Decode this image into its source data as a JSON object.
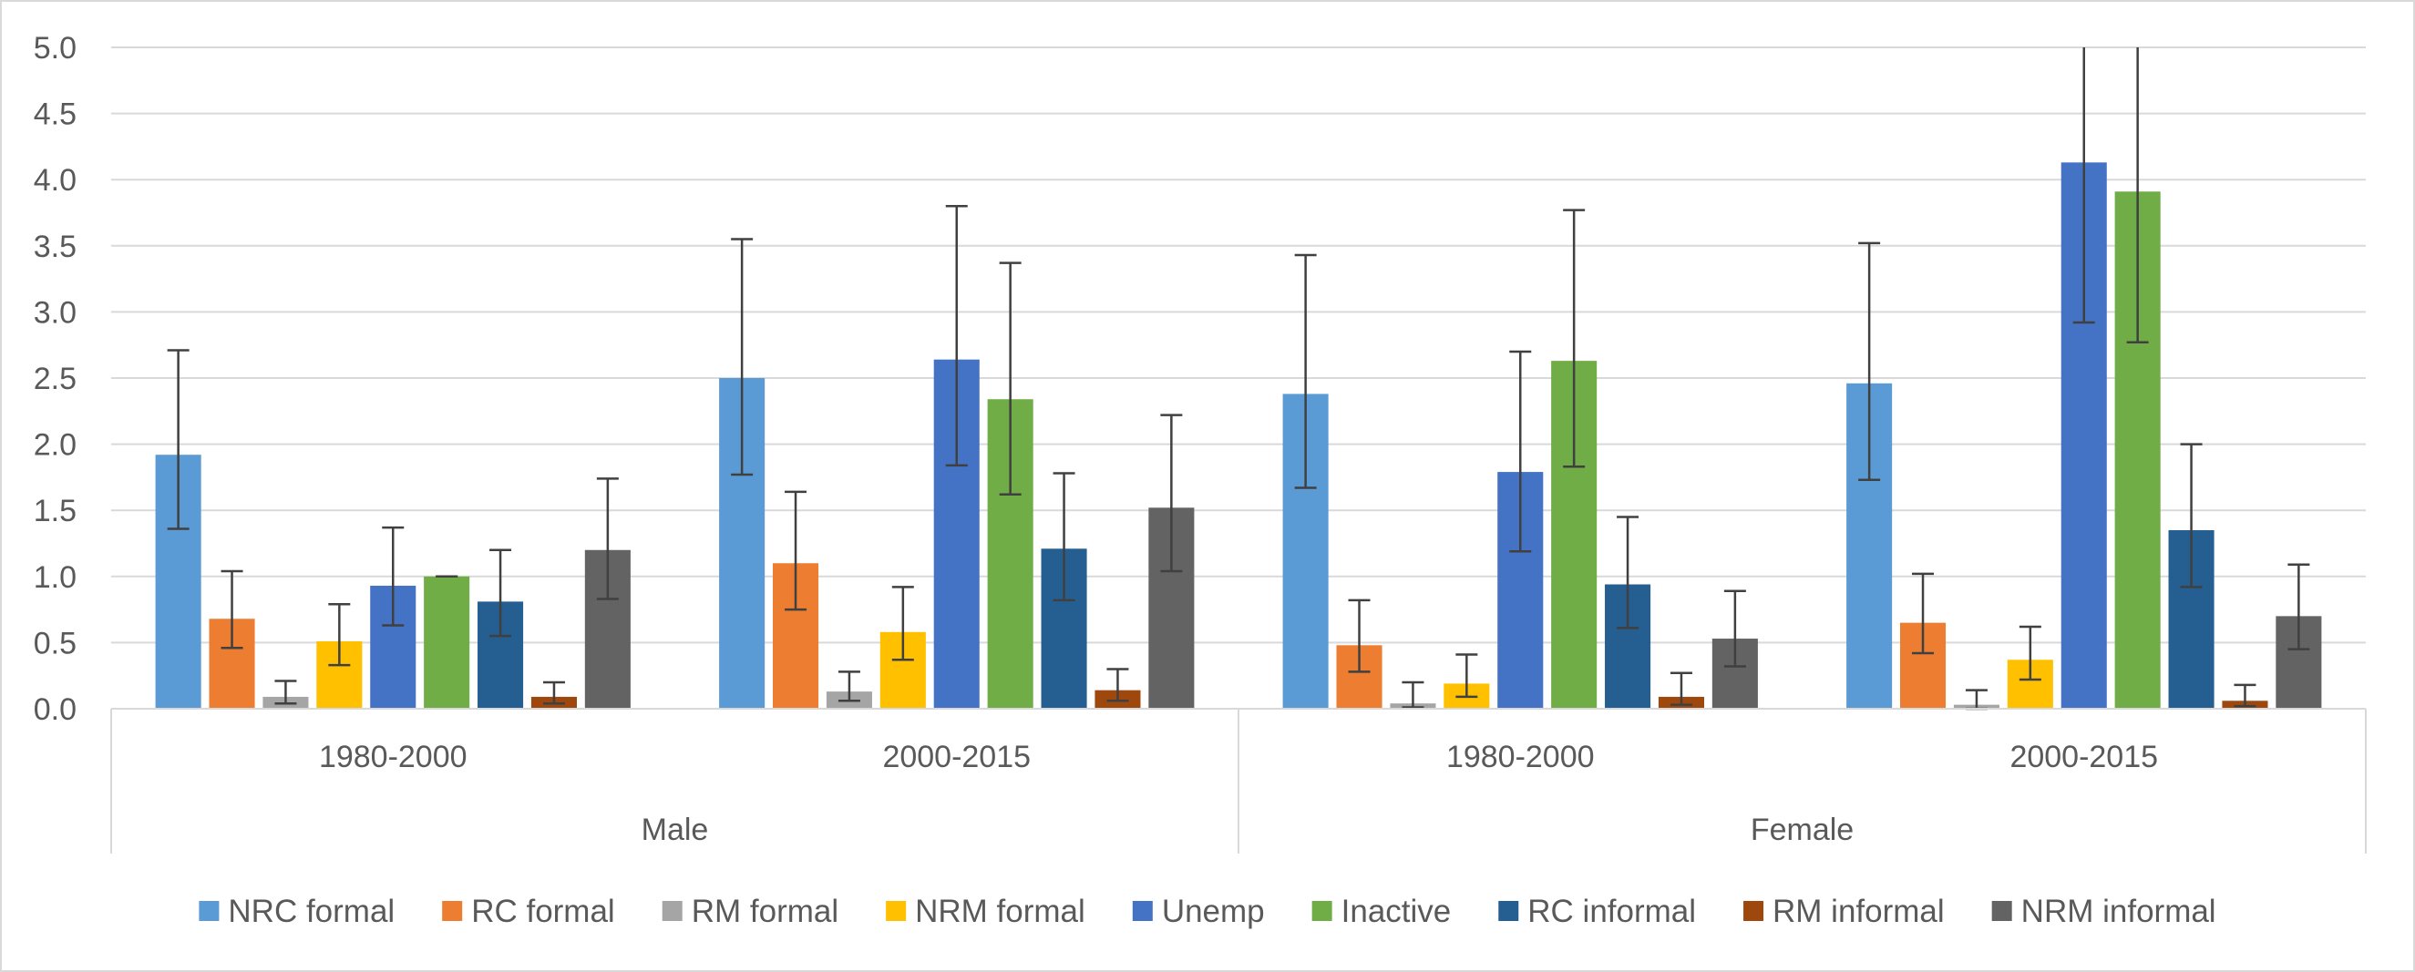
{
  "chart_data": {
    "type": "bar",
    "title": "",
    "xlabel": "",
    "ylabel": "",
    "ylim": [
      0,
      5
    ],
    "yticks": [
      "0.0",
      "0.5",
      "1.0",
      "1.5",
      "2.0",
      "2.5",
      "3.0",
      "3.5",
      "4.0",
      "4.5",
      "5.0"
    ],
    "grid": true,
    "legend_position": "bottom",
    "error_bars": true,
    "groups": [
      {
        "name": "Male",
        "categories": [
          "1980-2000",
          "2000-2015"
        ]
      },
      {
        "name": "Female",
        "categories": [
          "1980-2000",
          "2000-2015"
        ]
      }
    ],
    "categories": [
      "Male 1980-2000",
      "Male 2000-2015",
      "Female 1980-2000",
      "Female 2000-2015"
    ],
    "series": [
      {
        "name": "NRC formal",
        "color": "#5b9bd5",
        "values": [
          1.92,
          2.5,
          2.38,
          2.46
        ],
        "err_low": [
          1.36,
          1.77,
          1.67,
          1.73
        ],
        "err_high": [
          2.71,
          3.55,
          3.43,
          3.52
        ]
      },
      {
        "name": "RC formal",
        "color": "#ed7d31",
        "values": [
          0.68,
          1.1,
          0.48,
          0.65
        ],
        "err_low": [
          0.46,
          0.75,
          0.28,
          0.42
        ],
        "err_high": [
          1.04,
          1.64,
          0.82,
          1.02
        ]
      },
      {
        "name": "RM formal",
        "color": "#a5a5a5",
        "values": [
          0.09,
          0.13,
          0.04,
          0.03
        ],
        "err_low": [
          0.04,
          0.06,
          0.01,
          0.0
        ],
        "err_high": [
          0.21,
          0.28,
          0.2,
          0.14
        ]
      },
      {
        "name": "NRM formal",
        "color": "#ffc000",
        "values": [
          0.51,
          0.58,
          0.19,
          0.37
        ],
        "err_low": [
          0.33,
          0.37,
          0.09,
          0.22
        ],
        "err_high": [
          0.79,
          0.92,
          0.41,
          0.62
        ]
      },
      {
        "name": "Unemp",
        "color": "#4472c4",
        "values": [
          0.93,
          2.64,
          1.79,
          4.13
        ],
        "err_low": [
          0.63,
          1.84,
          1.19,
          2.92
        ],
        "err_high": [
          1.37,
          3.8,
          2.7,
          5.0
        ]
      },
      {
        "name": "Inactive",
        "color": "#70ad47",
        "values": [
          1.0,
          2.34,
          2.63,
          3.91
        ],
        "err_low": [
          1.0,
          1.62,
          1.83,
          2.77
        ],
        "err_high": [
          1.0,
          3.37,
          3.77,
          5.0
        ]
      },
      {
        "name": "RC informal",
        "color": "#255e91",
        "values": [
          0.81,
          1.21,
          0.94,
          1.35
        ],
        "err_low": [
          0.55,
          0.82,
          0.61,
          0.92
        ],
        "err_high": [
          1.2,
          1.78,
          1.45,
          2.0
        ]
      },
      {
        "name": "RM informal",
        "color": "#9e480e",
        "values": [
          0.09,
          0.14,
          0.09,
          0.06
        ],
        "err_low": [
          0.04,
          0.06,
          0.03,
          0.02
        ],
        "err_high": [
          0.2,
          0.3,
          0.27,
          0.18
        ]
      },
      {
        "name": "NRM informal",
        "color": "#636363",
        "values": [
          1.2,
          1.52,
          0.53,
          0.7
        ],
        "err_low": [
          0.83,
          1.04,
          0.32,
          0.45
        ],
        "err_high": [
          1.74,
          2.22,
          0.89,
          1.09
        ]
      }
    ]
  }
}
